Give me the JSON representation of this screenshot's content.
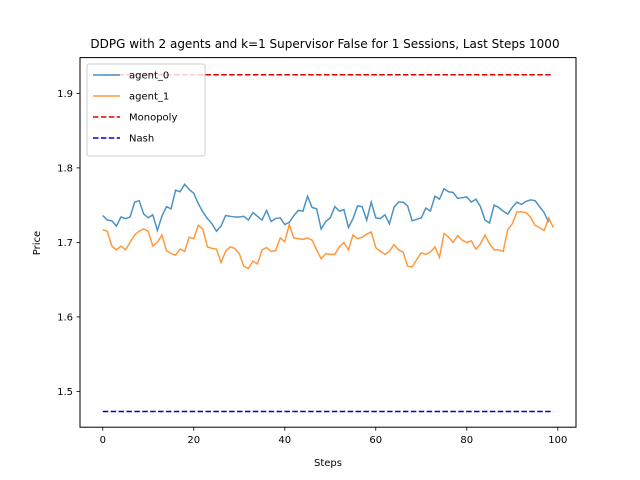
{
  "chart_data": {
    "type": "line",
    "title": "DDPG with 2 agents and k=1 Supervisor False for 1 Sessions, Last Steps 1000",
    "xlabel": "Steps",
    "ylabel": "Price",
    "xlim": [
      -5,
      104
    ],
    "ylim": [
      1.452,
      1.948
    ],
    "xticks": [
      0,
      20,
      40,
      60,
      80,
      100
    ],
    "yticks": [
      1.5,
      1.6,
      1.7,
      1.8,
      1.9
    ],
    "legend_position": "upper-left",
    "series": [
      {
        "name": "agent_0",
        "color": "#1f77b4",
        "style": "solid",
        "values": [
          1.736,
          1.73,
          1.729,
          1.722,
          1.734,
          1.732,
          1.734,
          1.754,
          1.756,
          1.738,
          1.733,
          1.737,
          1.716,
          1.735,
          1.748,
          1.745,
          1.77,
          1.768,
          1.778,
          1.771,
          1.766,
          1.752,
          1.741,
          1.732,
          1.725,
          1.715,
          1.722,
          1.736,
          1.735,
          1.734,
          1.734,
          1.735,
          1.73,
          1.74,
          1.735,
          1.73,
          1.743,
          1.728,
          1.732,
          1.733,
          1.724,
          1.727,
          1.736,
          1.743,
          1.742,
          1.762,
          1.747,
          1.745,
          1.718,
          1.728,
          1.733,
          1.748,
          1.742,
          1.744,
          1.72,
          1.732,
          1.749,
          1.748,
          1.73,
          1.754,
          1.733,
          1.732,
          1.737,
          1.725,
          1.747,
          1.754,
          1.754,
          1.749,
          1.729,
          1.731,
          1.733,
          1.746,
          1.742,
          1.762,
          1.758,
          1.772,
          1.768,
          1.767,
          1.759,
          1.76,
          1.761,
          1.754,
          1.758,
          1.748,
          1.73,
          1.726,
          1.75,
          1.747,
          1.742,
          1.738,
          1.747,
          1.754,
          1.751,
          1.755,
          1.757,
          1.756,
          1.748,
          1.74,
          1.727
        ]
      },
      {
        "name": "agent_1",
        "color": "#ff7f0e",
        "style": "solid",
        "values": [
          1.717,
          1.715,
          1.695,
          1.69,
          1.695,
          1.69,
          1.7,
          1.71,
          1.715,
          1.718,
          1.715,
          1.695,
          1.7,
          1.71,
          1.689,
          1.685,
          1.683,
          1.691,
          1.688,
          1.707,
          1.705,
          1.723,
          1.718,
          1.694,
          1.692,
          1.691,
          1.673,
          1.688,
          1.694,
          1.692,
          1.685,
          1.668,
          1.665,
          1.675,
          1.671,
          1.69,
          1.693,
          1.688,
          1.689,
          1.706,
          1.701,
          1.724,
          1.706,
          1.705,
          1.704,
          1.706,
          1.703,
          1.69,
          1.678,
          1.685,
          1.684,
          1.684,
          1.694,
          1.7,
          1.69,
          1.71,
          1.705,
          1.707,
          1.711,
          1.714,
          1.693,
          1.688,
          1.684,
          1.688,
          1.697,
          1.69,
          1.687,
          1.668,
          1.667,
          1.677,
          1.686,
          1.684,
          1.687,
          1.694,
          1.68,
          1.712,
          1.707,
          1.7,
          1.709,
          1.703,
          1.7,
          1.702,
          1.691,
          1.698,
          1.71,
          1.698,
          1.69,
          1.69,
          1.688,
          1.717,
          1.725,
          1.741,
          1.741,
          1.74,
          1.734,
          1.723,
          1.72,
          1.716,
          1.733,
          1.72
        ]
      },
      {
        "name": "Monopoly",
        "color": "#dd0000",
        "style": "dashed",
        "x": [
          0,
          99
        ],
        "values": [
          1.925,
          1.925
        ]
      },
      {
        "name": "Nash",
        "color": "#0000cc",
        "style": "dashed",
        "x": [
          0,
          99
        ],
        "values": [
          1.473,
          1.473
        ]
      }
    ]
  }
}
